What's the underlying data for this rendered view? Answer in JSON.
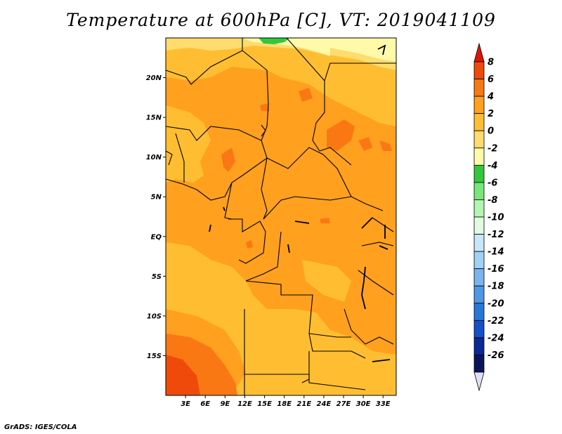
{
  "title": "Temperature at 600hPa [C], VT: 2019041109",
  "credit": "GrADS: IGES/COLA",
  "map": {
    "lon_range": [
      0,
      35
    ],
    "lat_range": [
      -20,
      25
    ],
    "lat_ticks": [
      {
        "value": 20,
        "label": "20N"
      },
      {
        "value": 15,
        "label": "15N"
      },
      {
        "value": 10,
        "label": "10N"
      },
      {
        "value": 5,
        "label": "5N"
      },
      {
        "value": 0,
        "label": "EQ"
      },
      {
        "value": -5,
        "label": "5S"
      },
      {
        "value": -10,
        "label": "10S"
      },
      {
        "value": -15,
        "label": "15S"
      }
    ],
    "lon_ticks": [
      {
        "value": 3,
        "label": "3E"
      },
      {
        "value": 6,
        "label": "6E"
      },
      {
        "value": 9,
        "label": "9E"
      },
      {
        "value": 12,
        "label": "12E"
      },
      {
        "value": 15,
        "label": "15E"
      },
      {
        "value": 18,
        "label": "18E"
      },
      {
        "value": 21,
        "label": "21E"
      },
      {
        "value": 24,
        "label": "24E"
      },
      {
        "value": 27,
        "label": "27E"
      },
      {
        "value": 30,
        "label": "30E"
      },
      {
        "value": 33,
        "label": "33E"
      }
    ]
  },
  "colorbar": {
    "labels": [
      "8",
      "6",
      "4",
      "2",
      "0",
      "-2",
      "-4",
      "-6",
      "-8",
      "-10",
      "-12",
      "-14",
      "-16",
      "-18",
      "-20",
      "-22",
      "-24",
      "-26"
    ],
    "colors": [
      "#e11400",
      "#f04a0a",
      "#fa7814",
      "#ffa01e",
      "#ffbe32",
      "#ffdc6e",
      "#fffaaa",
      "#32c83c",
      "#78e678",
      "#b4f5b4",
      "#e1fae1",
      "#c8e6fa",
      "#a0d2f5",
      "#78b4ee",
      "#5096e6",
      "#2878dc",
      "#1450c8",
      "#0a2896",
      "#0a145a",
      "#e0e0f4"
    ]
  }
}
